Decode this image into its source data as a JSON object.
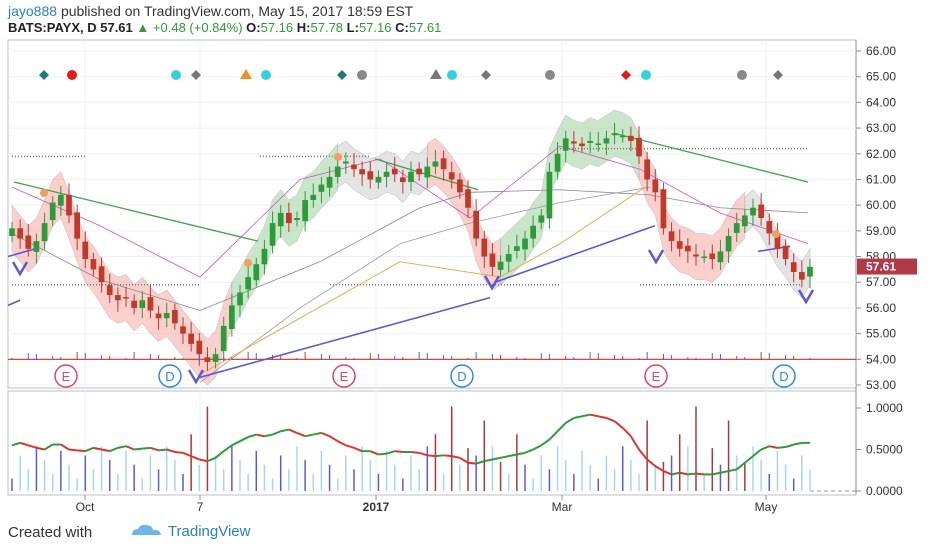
{
  "header": {
    "author": "jayo888",
    "published_text": "published on TradingView.com, May 15, 2017 18:59 EST",
    "symbol": "BATS:PAYX, D",
    "last": "57.61",
    "arrow": "▲",
    "change": "+0.48 (+0.84%)",
    "o_label": "O:",
    "o_val": "57.16",
    "h_label": "H:",
    "h_val": "57.78",
    "l_label": "L:",
    "l_val": "57.16",
    "c_label": "C:",
    "c_val": "57.61"
  },
  "footer": {
    "created_with": "Created with",
    "brand": "TradingView"
  },
  "colors": {
    "up": "#2e9a3a",
    "down": "#c0392b",
    "price_badge": "#b03a48",
    "trend": "#5a5ad6",
    "resistance": "#3ea34a",
    "indicator_line_up": "#2e9a3a",
    "indicator_line_down": "#d9362f"
  },
  "chart_data": [
    {
      "type": "candlestick",
      "title": "",
      "price_axis_ticks": [
        "66.00",
        "65.00",
        "64.00",
        "63.00",
        "62.00",
        "61.00",
        "60.00",
        "59.00",
        "58.00",
        "57.00",
        "56.00",
        "55.00",
        "54.00",
        "53.00"
      ],
      "ylim": [
        52.9,
        66.4
      ],
      "last_price_label": "57.61",
      "time_axis_labels": [
        "Oct",
        "7",
        "2017",
        "Mar",
        "May"
      ],
      "earnings_markers": [
        "E",
        "E",
        "E"
      ],
      "dividend_markers": [
        "D",
        "D",
        "D"
      ],
      "close": [
        59.1,
        58.7,
        58.3,
        58.6,
        59.3,
        60.1,
        60.4,
        59.6,
        58.7,
        57.9,
        57.5,
        57.0,
        56.5,
        56.3,
        56.4,
        56.0,
        56.3,
        55.9,
        55.6,
        55.8,
        55.4,
        55.0,
        54.6,
        54.2,
        53.9,
        54.2,
        55.3,
        56.1,
        56.6,
        57.2,
        57.7,
        58.3,
        59.3,
        59.7,
        59.3,
        59.5,
        60.2,
        60.4,
        60.8,
        61.1,
        61.5,
        61.7,
        61.4,
        61.2,
        61.0,
        61.1,
        61.3,
        61.2,
        60.9,
        61.3,
        61.2,
        61.5,
        61.7,
        61.4,
        61.0,
        60.5,
        59.9,
        58.7,
        58.0,
        57.6,
        57.8,
        58.1,
        58.4,
        58.7,
        59.2,
        59.6,
        61.3,
        62.0,
        62.6,
        62.4,
        62.3,
        62.5,
        62.4,
        62.6,
        62.8,
        62.7,
        62.5,
        61.9,
        61.0,
        60.5,
        59.1,
        58.6,
        58.3,
        58.2,
        58.0,
        58.0,
        57.9,
        58.2,
        58.8,
        59.3,
        59.6,
        59.9,
        59.5,
        58.9,
        58.3,
        57.9,
        57.4,
        57.1,
        57.6
      ],
      "levels": {
        "support_dotted": 56.9,
        "upper_dotted": 62.2,
        "red_horizontal": 54.0
      }
    },
    {
      "type": "line",
      "title": "",
      "y_axis_ticks": [
        "1.0000",
        "0.5000",
        "0.0000"
      ],
      "ylim": [
        -0.05,
        1.15
      ],
      "indicator": [
        0.55,
        0.58,
        0.55,
        0.52,
        0.5,
        0.56,
        0.56,
        0.5,
        0.49,
        0.48,
        0.52,
        0.5,
        0.48,
        0.52,
        0.54,
        0.5,
        0.51,
        0.52,
        0.49,
        0.5,
        0.47,
        0.46,
        0.42,
        0.38,
        0.36,
        0.4,
        0.48,
        0.55,
        0.6,
        0.65,
        0.68,
        0.66,
        0.68,
        0.72,
        0.74,
        0.7,
        0.66,
        0.68,
        0.7,
        0.66,
        0.6,
        0.55,
        0.52,
        0.48,
        0.48,
        0.44,
        0.45,
        0.48,
        0.47,
        0.47,
        0.46,
        0.43,
        0.42,
        0.43,
        0.42,
        0.4,
        0.34,
        0.33,
        0.36,
        0.38,
        0.4,
        0.42,
        0.44,
        0.46,
        0.5,
        0.55,
        0.62,
        0.72,
        0.82,
        0.88,
        0.9,
        0.92,
        0.9,
        0.88,
        0.84,
        0.76,
        0.66,
        0.5,
        0.38,
        0.3,
        0.24,
        0.2,
        0.22,
        0.2,
        0.21,
        0.2,
        0.2,
        0.22,
        0.24,
        0.26,
        0.34,
        0.42,
        0.5,
        0.54,
        0.52,
        0.53,
        0.56,
        0.58,
        0.58
      ]
    }
  ]
}
